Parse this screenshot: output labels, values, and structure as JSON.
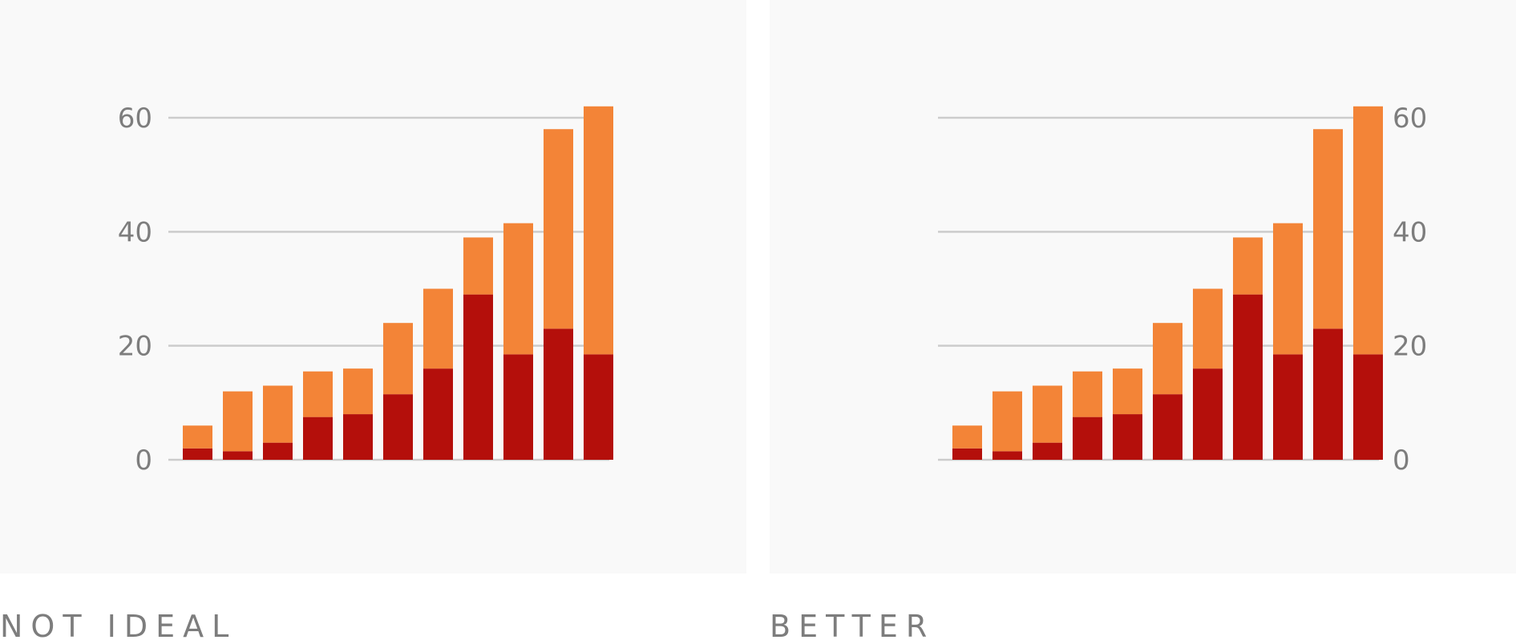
{
  "chart_data": [
    {
      "type": "bar",
      "stacked": true,
      "axis_side": "left",
      "categories": [
        "",
        "",
        "",
        "",
        "",
        "",
        "",
        "",
        "",
        "",
        ""
      ],
      "series": [
        {
          "values": [
            2,
            1.5,
            3,
            7.5,
            8,
            11.5,
            16,
            29,
            18.5,
            23,
            18.5
          ]
        },
        {
          "values": [
            4,
            10.5,
            10,
            8,
            8,
            12.5,
            14,
            10,
            23,
            35,
            43.5
          ]
        }
      ],
      "y_ticks": [
        "0",
        "20",
        "40",
        "60"
      ],
      "ylim": [
        0,
        60
      ],
      "grid": true,
      "colors": {
        "bottom": "#b40f0b",
        "top": "#f38437",
        "grid": "#cccccc",
        "text": "#7d7d7d"
      },
      "caption": "NOT IDEAL"
    },
    {
      "type": "bar",
      "stacked": true,
      "axis_side": "right",
      "categories": [
        "",
        "",
        "",
        "",
        "",
        "",
        "",
        "",
        "",
        "",
        ""
      ],
      "series": [
        {
          "values": [
            2,
            1.5,
            3,
            7.5,
            8,
            11.5,
            16,
            29,
            18.5,
            23,
            18.5
          ]
        },
        {
          "values": [
            4,
            10.5,
            10,
            8,
            8,
            12.5,
            14,
            10,
            23,
            35,
            43.5
          ]
        }
      ],
      "y_ticks": [
        "0",
        "20",
        "40",
        "60"
      ],
      "ylim": [
        0,
        60
      ],
      "grid": true,
      "colors": {
        "bottom": "#b40f0b",
        "top": "#f38437",
        "grid": "#cccccc",
        "text": "#7d7d7d"
      },
      "caption": "BETTER"
    }
  ]
}
